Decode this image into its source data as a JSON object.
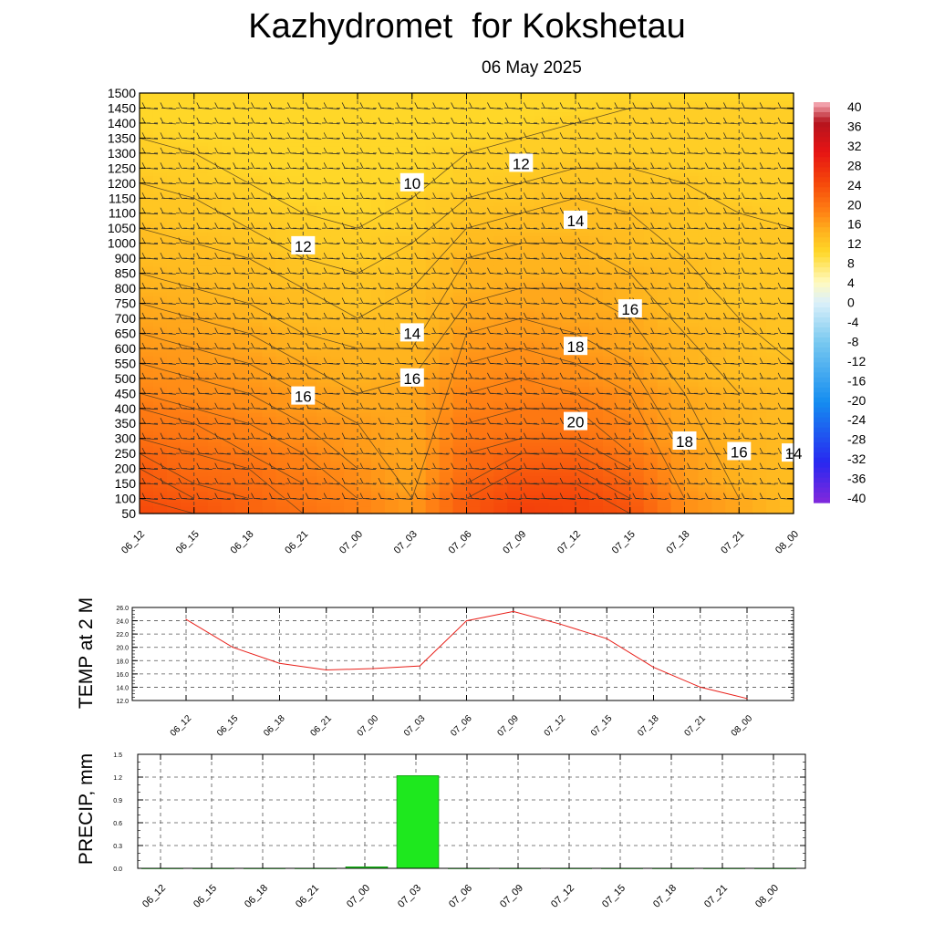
{
  "header": {
    "title": "Kazhydromet  for Kokshetau",
    "date": "06 May 2025"
  },
  "chart_data": [
    {
      "type": "heatmap",
      "title": "",
      "xlabel": "",
      "ylabel": "",
      "x": [
        "06_12",
        "06_15",
        "06_18",
        "06_21",
        "07_00",
        "07_03",
        "07_06",
        "07_09",
        "07_12",
        "07_15",
        "07_18",
        "07_21",
        "08_00"
      ],
      "y": [
        50,
        100,
        150,
        200,
        250,
        300,
        350,
        400,
        450,
        500,
        550,
        600,
        650,
        700,
        750,
        800,
        850,
        900,
        1000,
        1050,
        1100,
        1150,
        1200,
        1250,
        1300,
        1350,
        1400,
        1450,
        1500
      ],
      "values": [
        [
          24,
          23,
          21,
          20,
          18,
          16,
          22,
          25,
          24,
          23,
          17,
          15,
          13
        ],
        [
          23,
          22,
          21,
          19,
          18,
          16,
          22,
          24,
          24,
          22,
          17,
          15,
          13
        ],
        [
          22,
          21,
          20,
          19,
          17,
          15,
          21,
          23,
          23,
          21,
          16,
          14,
          13
        ],
        [
          22,
          20,
          20,
          18,
          17,
          15,
          20,
          22,
          22,
          20,
          16,
          14,
          13
        ],
        [
          21,
          20,
          19,
          18,
          16,
          15,
          20,
          21,
          21,
          19,
          16,
          14,
          13
        ],
        [
          20,
          19,
          18,
          17,
          16,
          15,
          19,
          20,
          20,
          18,
          15,
          14,
          13
        ],
        [
          19,
          19,
          18,
          17,
          16,
          15,
          19,
          19,
          19,
          18,
          15,
          14,
          13
        ],
        [
          19,
          18,
          17,
          16,
          15,
          15,
          18,
          19,
          19,
          17,
          15,
          14,
          13
        ],
        [
          18,
          17,
          17,
          16,
          15,
          15,
          18,
          18,
          18,
          17,
          15,
          14,
          13
        ],
        [
          17,
          17,
          16,
          15,
          14,
          15,
          17,
          18,
          17,
          16,
          14,
          13,
          13
        ],
        [
          17,
          16,
          16,
          15,
          14,
          14,
          17,
          17,
          17,
          16,
          14,
          13,
          13
        ],
        [
          16,
          16,
          15,
          14,
          14,
          14,
          16,
          17,
          16,
          15,
          14,
          13,
          12
        ],
        [
          16,
          15,
          15,
          14,
          13,
          13,
          16,
          16,
          16,
          15,
          14,
          13,
          12
        ],
        [
          15,
          15,
          14,
          13,
          13,
          13,
          15,
          16,
          15,
          15,
          13,
          13,
          12
        ],
        [
          15,
          14,
          14,
          13,
          12,
          13,
          15,
          15,
          15,
          14,
          13,
          12,
          12
        ],
        [
          14,
          14,
          13,
          13,
          12,
          13,
          14,
          15,
          15,
          14,
          13,
          12,
          12
        ],
        [
          14,
          13,
          13,
          12,
          12,
          12,
          14,
          14,
          14,
          14,
          13,
          12,
          12
        ],
        [
          13,
          13,
          13,
          12,
          11,
          12,
          14,
          14,
          14,
          13,
          13,
          12,
          12
        ],
        [
          13,
          13,
          12,
          11,
          11,
          12,
          13,
          14,
          14,
          13,
          12,
          12,
          12
        ],
        [
          13,
          12,
          12,
          11,
          11,
          11,
          13,
          13,
          13,
          13,
          12,
          12,
          12
        ],
        [
          12,
          12,
          11,
          11,
          10,
          11,
          12,
          13,
          13,
          13,
          12,
          12,
          11
        ],
        [
          12,
          12,
          11,
          10,
          10,
          11,
          12,
          12,
          13,
          12,
          12,
          11,
          11
        ],
        [
          12,
          11,
          11,
          10,
          10,
          10,
          11,
          12,
          12,
          12,
          12,
          11,
          11
        ],
        [
          11,
          11,
          10,
          10,
          10,
          10,
          11,
          11,
          12,
          12,
          11,
          11,
          11
        ],
        [
          11,
          11,
          10,
          10,
          10,
          10,
          11,
          11,
          11,
          11,
          11,
          11,
          11
        ],
        [
          11,
          10,
          10,
          10,
          10,
          10,
          10,
          11,
          11,
          11,
          11,
          11,
          11
        ],
        [
          10,
          10,
          10,
          10,
          10,
          10,
          10,
          10,
          11,
          11,
          11,
          11,
          11
        ],
        [
          10,
          10,
          10,
          10,
          10,
          10,
          10,
          10,
          10,
          11,
          11,
          11,
          11
        ],
        [
          10,
          10,
          10,
          10,
          10,
          10,
          10,
          10,
          10,
          10,
          10,
          10,
          10
        ]
      ],
      "contour_labels": [
        {
          "text": "10",
          "x": "07_03",
          "y": 1200
        },
        {
          "text": "12",
          "x": "07_09",
          "y": 1265
        },
        {
          "text": "14",
          "x": "07_12",
          "y": 1075
        },
        {
          "text": "12",
          "x": "06_21",
          "y": 980
        },
        {
          "text": "16",
          "x": "07_15",
          "y": 730
        },
        {
          "text": "14",
          "x": "07_03",
          "y": 650
        },
        {
          "text": "18",
          "x": "07_12",
          "y": 605
        },
        {
          "text": "16",
          "x": "07_03",
          "y": 500
        },
        {
          "text": "16",
          "x": "06_21",
          "y": 440
        },
        {
          "text": "20",
          "x": "07_12",
          "y": 355
        },
        {
          "text": "18",
          "x": "07_18",
          "y": 290
        },
        {
          "text": "16",
          "x": "07_21",
          "y": 255
        },
        {
          "text": "14",
          "x": "08_00",
          "y": 250
        }
      ],
      "colorbar": {
        "labels": [
          "40",
          "36",
          "32",
          "28",
          "24",
          "20",
          "16",
          "12",
          "8",
          "4",
          "0",
          "-4",
          "-8",
          "-12",
          "-16",
          "-20",
          "-24",
          "-28",
          "-32",
          "-36",
          "-40"
        ],
        "min": -40,
        "max": 40
      }
    },
    {
      "type": "line",
      "ylabel": "TEMP at 2 M",
      "categories": [
        "06_12",
        "06_15",
        "06_18",
        "06_21",
        "07_00",
        "07_03",
        "07_06",
        "07_09",
        "07_12",
        "07_15",
        "07_18",
        "07_21",
        "08_00"
      ],
      "values": [
        24.2,
        20.0,
        17.6,
        16.6,
        16.8,
        17.2,
        24.0,
        25.4,
        23.5,
        21.3,
        17.0,
        14.0,
        12.3
      ],
      "ylim": [
        12.0,
        26.0
      ],
      "yticks": [
        "12.0",
        "14.0",
        "16.0",
        "18.0",
        "20.0",
        "22.0",
        "24.0",
        "26.0"
      ],
      "color": "#e8201a"
    },
    {
      "type": "bar",
      "ylabel": "PRECIP, mm",
      "categories": [
        "06_12",
        "06_15",
        "06_18",
        "06_21",
        "07_00",
        "07_03",
        "07_06",
        "07_09",
        "07_12",
        "07_15",
        "07_18",
        "07_21",
        "08_00"
      ],
      "values": [
        0,
        0,
        0,
        0,
        0.02,
        1.22,
        0,
        0,
        0,
        0,
        0,
        0,
        0
      ],
      "ylim": [
        0.0,
        1.5
      ],
      "yticks": [
        "0.0",
        "0.3",
        "0.6",
        "0.9",
        "1.2",
        "1.5"
      ],
      "color": "#1ee81e"
    }
  ]
}
